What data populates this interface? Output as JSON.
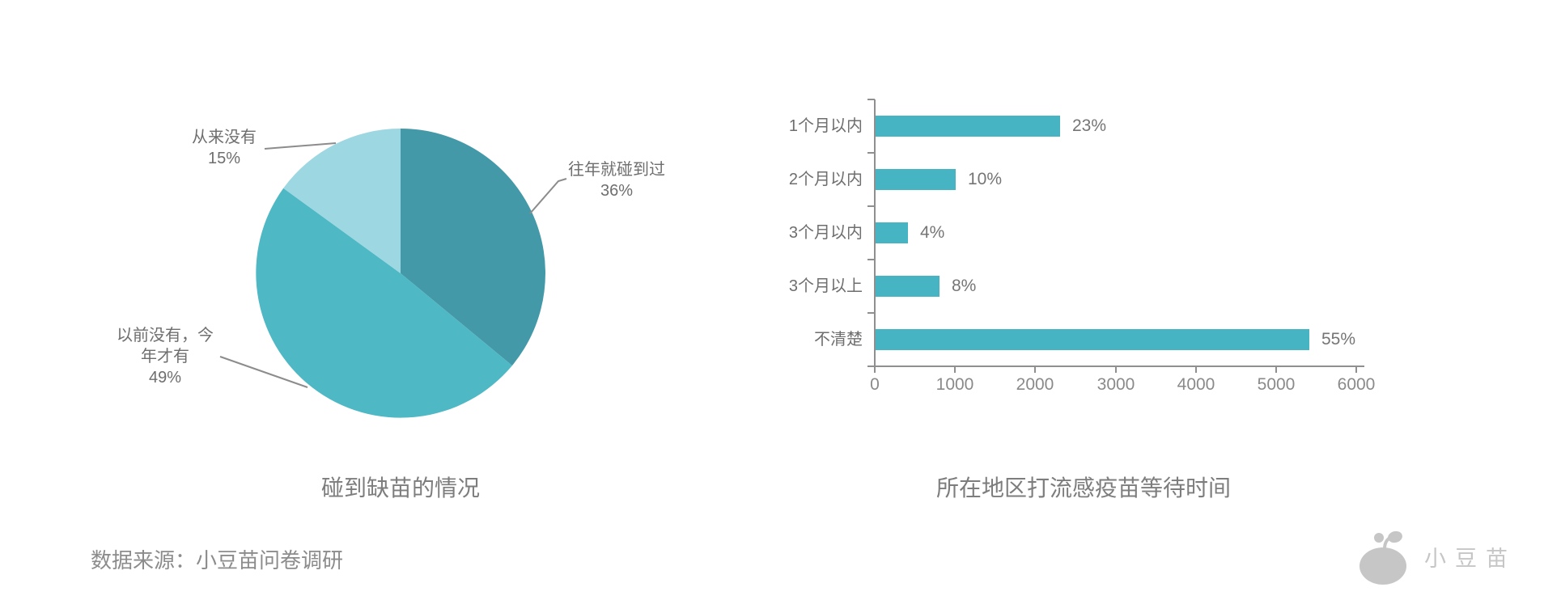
{
  "page": {
    "background": "#FFFFFF"
  },
  "source_note": "数据来源：小豆苗问卷调研",
  "logo": {
    "text": "小豆苗",
    "icon": "sprout-bean-icon",
    "color": "#C6C6C6"
  },
  "styles": {
    "axis_color": "#8F8F8F",
    "leader_line_color": "#8C8C8C",
    "label_color": "#6E6E6E",
    "title_color": "#7D7D7D",
    "tick_label_color": "#8A8A8A"
  },
  "chart_data": [
    {
      "type": "pie",
      "title": "碰到缺苗的情况",
      "start_angle": "top",
      "direction": "clockwise",
      "slices": [
        {
          "label": "往年就碰到过",
          "label_lines": [
            "往年就碰到过"
          ],
          "pct": 36,
          "value_label": "36%",
          "color": "#4399A8"
        },
        {
          "label": "以前没有，今年才有",
          "label_lines": [
            "以前没有，今",
            "年才有"
          ],
          "pct": 49,
          "value_label": "49%",
          "color": "#4FB8C5"
        },
        {
          "label": "从来没有",
          "label_lines": [
            "从来没有"
          ],
          "pct": 15,
          "value_label": "15%",
          "color": "#9CD7E2"
        }
      ]
    },
    {
      "type": "bar",
      "orientation": "horizontal",
      "title": "所在地区打流感疫苗等待时间",
      "categories": [
        "1个月以内",
        "2个月以内",
        "3个月以内",
        "3个月以上",
        "不清楚"
      ],
      "values": [
        2300,
        1000,
        400,
        800,
        5400
      ],
      "value_labels": [
        "23%",
        "10%",
        "4%",
        "8%",
        "55%"
      ],
      "xlim": [
        0,
        6000
      ],
      "x_ticks": [
        0,
        1000,
        2000,
        3000,
        4000,
        5000,
        6000
      ],
      "grid": false,
      "legend": "none",
      "bar_color": "#47B4C3"
    }
  ]
}
